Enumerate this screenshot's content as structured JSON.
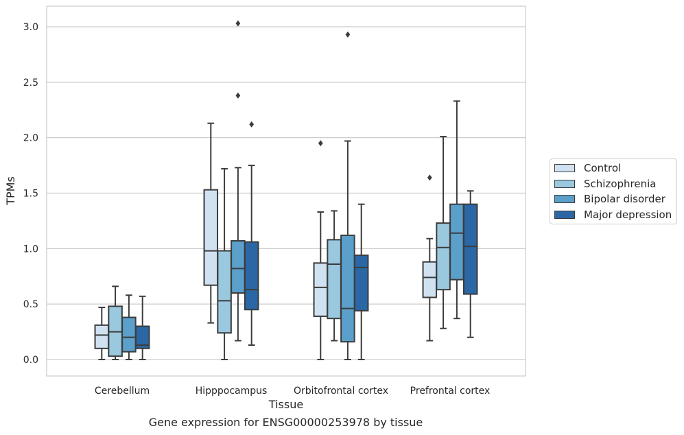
{
  "chart_data": {
    "type": "box",
    "title": "",
    "caption": "Gene expression for ENSG00000253978 by tissue",
    "xlabel": "Tissue",
    "ylabel": "TPMs",
    "ylim": [
      -0.15,
      3.18
    ],
    "yticks": [
      0.0,
      0.5,
      1.0,
      1.5,
      2.0,
      2.5,
      3.0
    ],
    "ytick_labels": [
      "0.0",
      "0.5",
      "1.0",
      "1.5",
      "2.0",
      "2.5",
      "3.0"
    ],
    "grid": "horizontal",
    "legend_position": "right",
    "categories": [
      "Cerebellum",
      "Hipppocampus",
      "Orbitofrontal cortex",
      "Prefrontal cortex"
    ],
    "series": [
      {
        "name": "Control",
        "color": "#d0e2f2",
        "boxes": [
          {
            "whislo": 0.0,
            "q1": 0.1,
            "med": 0.22,
            "q3": 0.31,
            "whishi": 0.47,
            "fliers": []
          },
          {
            "whislo": 0.33,
            "q1": 0.67,
            "med": 0.98,
            "q3": 1.53,
            "whishi": 2.13,
            "fliers": []
          },
          {
            "whislo": 0.0,
            "q1": 0.39,
            "med": 0.65,
            "q3": 0.87,
            "whishi": 1.33,
            "fliers": [
              1.95
            ]
          },
          {
            "whislo": 0.17,
            "q1": 0.56,
            "med": 0.74,
            "q3": 0.88,
            "whishi": 1.09,
            "fliers": [
              1.64
            ]
          }
        ]
      },
      {
        "name": "Schizophrenia",
        "color": "#9ac8df",
        "boxes": [
          {
            "whislo": 0.0,
            "q1": 0.03,
            "med": 0.25,
            "q3": 0.48,
            "whishi": 0.66,
            "fliers": []
          },
          {
            "whislo": 0.0,
            "q1": 0.24,
            "med": 0.53,
            "q3": 0.98,
            "whishi": 1.72,
            "fliers": []
          },
          {
            "whislo": 0.17,
            "q1": 0.37,
            "med": 0.86,
            "q3": 1.08,
            "whishi": 1.34,
            "fliers": []
          },
          {
            "whislo": 0.28,
            "q1": 0.63,
            "med": 1.01,
            "q3": 1.23,
            "whishi": 2.01,
            "fliers": []
          }
        ]
      },
      {
        "name": "Bipolar disorder",
        "color": "#5b9fcb",
        "boxes": [
          {
            "whislo": 0.0,
            "q1": 0.07,
            "med": 0.2,
            "q3": 0.38,
            "whishi": 0.58,
            "fliers": []
          },
          {
            "whislo": 0.17,
            "q1": 0.6,
            "med": 0.82,
            "q3": 1.07,
            "whishi": 1.73,
            "fliers": [
              2.38,
              3.03
            ]
          },
          {
            "whislo": 0.0,
            "q1": 0.16,
            "med": 0.46,
            "q3": 1.12,
            "whishi": 1.97,
            "fliers": [
              2.93
            ]
          },
          {
            "whislo": 0.37,
            "q1": 0.72,
            "med": 1.14,
            "q3": 1.4,
            "whishi": 2.33,
            "fliers": []
          }
        ]
      },
      {
        "name": "Major depression",
        "color": "#2a67a4",
        "boxes": [
          {
            "whislo": 0.0,
            "q1": 0.1,
            "med": 0.13,
            "q3": 0.3,
            "whishi": 0.57,
            "fliers": []
          },
          {
            "whislo": 0.13,
            "q1": 0.45,
            "med": 0.63,
            "q3": 1.06,
            "whishi": 1.75,
            "fliers": [
              2.12
            ]
          },
          {
            "whislo": 0.0,
            "q1": 0.44,
            "med": 0.83,
            "q3": 0.94,
            "whishi": 1.4,
            "fliers": []
          },
          {
            "whislo": 0.2,
            "q1": 0.59,
            "med": 1.02,
            "q3": 1.4,
            "whishi": 1.52,
            "fliers": []
          }
        ]
      }
    ]
  }
}
